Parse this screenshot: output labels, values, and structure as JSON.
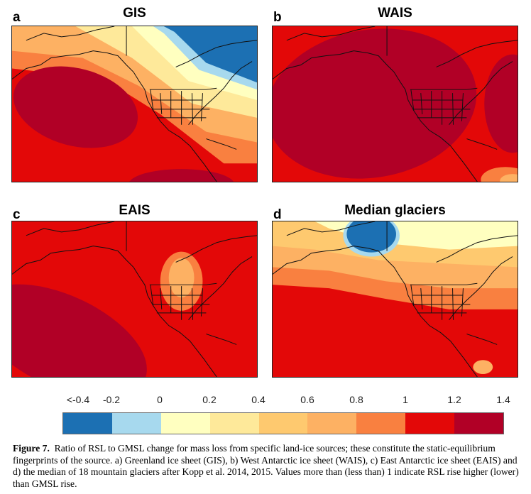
{
  "panels": [
    {
      "letter": "a",
      "title": "GIS"
    },
    {
      "letter": "b",
      "title": "WAIS"
    },
    {
      "letter": "c",
      "title": "EAIS"
    },
    {
      "letter": "d",
      "title": "Median glaciers"
    }
  ],
  "colorbar": {
    "tick_labels": [
      "<-0.4",
      "-0.2",
      "0",
      "0.2",
      "0.4",
      "0.6",
      "0.8",
      "1",
      "1.2",
      "1.4"
    ],
    "colors": [
      "#1c70b3",
      "#a7d9ee",
      "#ffffc0",
      "#fee99a",
      "#fec96f",
      "#fdb163",
      "#f98040",
      "#e30808",
      "#b10026"
    ]
  },
  "caption": {
    "label": "Figure 7.",
    "text": "Ratio of RSL to GMSL change for mass loss from specific land-ice sources; these constitute the static-equilibrium fingerprints of the source. a) Greenland ice sheet (GIS), b) West Antarctic ice sheet (WAIS), c) East Antarctic ice sheet (EAIS) and d) the median of 18 mountain glaciers after Kopp et al. 2014, 2015. Values more than (less than) 1 indicate RSL rise higher (lower) than GMSL rise."
  },
  "chart_data": {
    "type": "heatmap",
    "title": "Ratio of RSL to GMSL change",
    "panels": [
      "GIS",
      "WAIS",
      "EAIS",
      "Median glaciers"
    ],
    "colorbar_bins": [
      -0.4,
      -0.2,
      0,
      0.2,
      0.4,
      0.6,
      0.8,
      1,
      1.2,
      1.4
    ]
  }
}
